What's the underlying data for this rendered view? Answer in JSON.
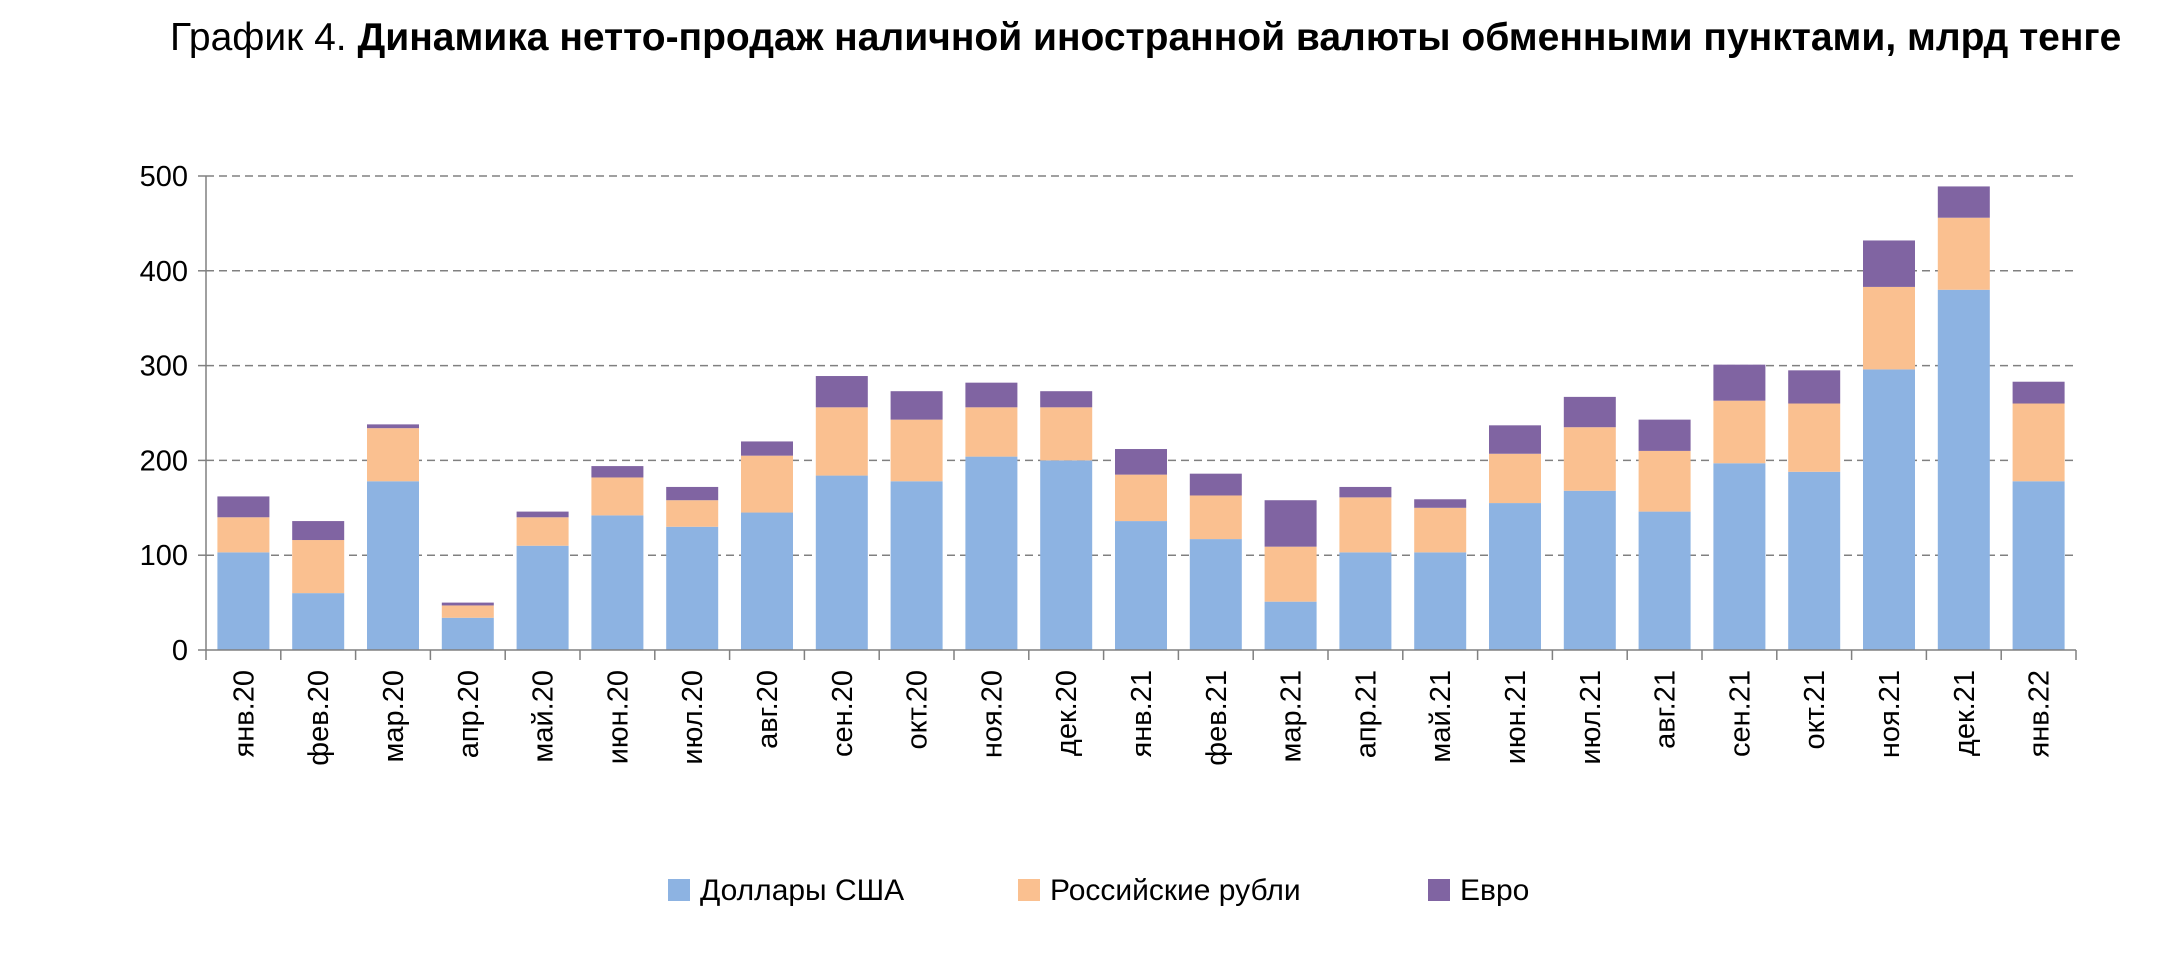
{
  "title": {
    "prefix": "График 4.",
    "main": "Динамика нетто-продаж наличной иностранной валюты обменными пунктами, млрд тенге"
  },
  "chart_data": {
    "type": "bar",
    "stacked": true,
    "categories": [
      "янв.20",
      "фев.20",
      "мар.20",
      "апр.20",
      "май.20",
      "июн.20",
      "июл.20",
      "авг.20",
      "сен.20",
      "окт.20",
      "ноя.20",
      "дек.20",
      "янв.21",
      "фев.21",
      "мар.21",
      "апр.21",
      "май.21",
      "июн.21",
      "июл.21",
      "авг.21",
      "сен.21",
      "окт.21",
      "ноя.21",
      "дек.21",
      "янв.22"
    ],
    "series": [
      {
        "name": "Доллары США",
        "color": "#8db3e2",
        "values": [
          103,
          60,
          178,
          34,
          110,
          142,
          130,
          145,
          184,
          178,
          204,
          200,
          136,
          117,
          51,
          103,
          103,
          155,
          168,
          146,
          197,
          188,
          296,
          380,
          178
        ]
      },
      {
        "name": "Российские рубли",
        "color": "#fac090",
        "values": [
          37,
          56,
          56,
          13,
          30,
          40,
          28,
          60,
          72,
          65,
          52,
          56,
          49,
          46,
          58,
          58,
          47,
          52,
          67,
          64,
          66,
          72,
          87,
          76,
          82
        ]
      },
      {
        "name": "Евро",
        "color": "#8064a2",
        "values": [
          22,
          20,
          4,
          3,
          6,
          12,
          14,
          15,
          33,
          30,
          26,
          17,
          27,
          23,
          49,
          11,
          9,
          30,
          32,
          33,
          38,
          35,
          49,
          33,
          23
        ]
      }
    ],
    "ylim": [
      0,
      500
    ],
    "yticks": [
      0,
      100,
      200,
      300,
      400,
      500
    ],
    "xlabel": "",
    "ylabel": "",
    "grid": "horizontal dashed",
    "legend_position": "bottom"
  }
}
